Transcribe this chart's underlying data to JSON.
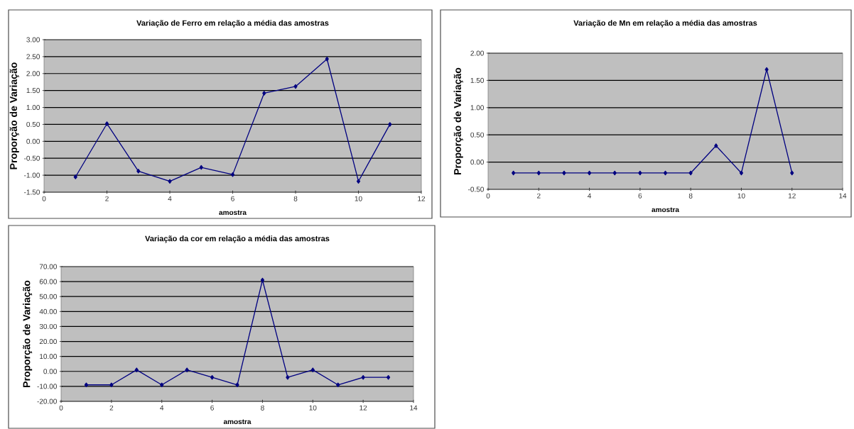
{
  "chart_data": [
    {
      "type": "line",
      "title": "Variação de Ferro em relação a média das amostras",
      "xlabel": "amostra",
      "ylabel": "Proporção de Variação",
      "color": "#000080",
      "marker": "diamond",
      "grid": "y",
      "x": [
        1,
        2,
        3,
        4,
        5,
        6,
        7,
        8,
        9,
        10,
        11
      ],
      "values": [
        -1.05,
        0.52,
        -0.88,
        -1.18,
        -0.77,
        -0.98,
        1.42,
        1.62,
        2.43,
        -1.18,
        0.5
      ],
      "xlim": [
        0,
        12
      ],
      "xticks": [
        0,
        2,
        4,
        6,
        8,
        10,
        12
      ],
      "ylim": [
        -1.5,
        3
      ],
      "yticks": [
        {
          "value": -1.5,
          "label": "-1.50"
        },
        {
          "value": -1,
          "label": "-1.00"
        },
        {
          "value": -0.5,
          "label": "-0.50"
        },
        {
          "value": 0,
          "label": "0.00"
        },
        {
          "value": 0.5,
          "label": "0.50"
        },
        {
          "value": 1,
          "label": "1.00"
        },
        {
          "value": 1.5,
          "label": "1.50"
        },
        {
          "value": 2,
          "label": "2.00"
        },
        {
          "value": 2.5,
          "label": "2.50"
        },
        {
          "value": 3,
          "label": "3.00"
        }
      ]
    },
    {
      "type": "line",
      "title": "Variação de Mn em relação a média das amostras",
      "xlabel": "amostra",
      "ylabel": "Proporção de Variação",
      "color": "#000080",
      "marker": "diamond",
      "grid": "y",
      "x": [
        1,
        2,
        3,
        4,
        5,
        6,
        7,
        8,
        9,
        10,
        11,
        12
      ],
      "values": [
        -0.2,
        -0.2,
        -0.2,
        -0.2,
        -0.2,
        -0.2,
        -0.2,
        -0.2,
        0.3,
        -0.2,
        1.7,
        -0.2
      ],
      "xlim": [
        0,
        14
      ],
      "xticks": [
        0,
        2,
        4,
        6,
        8,
        10,
        12,
        14
      ],
      "ylim": [
        -0.5,
        2
      ],
      "yticks": [
        {
          "value": -0.5,
          "label": "-0.50"
        },
        {
          "value": 0,
          "label": "0.00"
        },
        {
          "value": 0.5,
          "label": "0.50"
        },
        {
          "value": 1,
          "label": "1.00"
        },
        {
          "value": 1.5,
          "label": "1.50"
        },
        {
          "value": 2,
          "label": "2.00"
        }
      ]
    },
    {
      "type": "line",
      "title": "Variação da cor em relação a média das amostras",
      "xlabel": "amostra",
      "ylabel": "Proporção de Variação",
      "color": "#000080",
      "marker": "diamond",
      "grid": "y",
      "x": [
        1,
        2,
        3,
        4,
        5,
        6,
        7,
        8,
        9,
        10,
        11,
        12,
        13
      ],
      "values": [
        -9,
        -9,
        1,
        -9,
        1,
        -4,
        -9,
        61,
        -4,
        1,
        -9,
        -4,
        -4
      ],
      "xlim": [
        0,
        14
      ],
      "xticks": [
        0,
        2,
        4,
        6,
        8,
        10,
        12,
        14
      ],
      "ylim": [
        -20,
        70
      ],
      "yticks": [
        {
          "value": -20,
          "label": "-20.00"
        },
        {
          "value": -10,
          "label": "-10.00"
        },
        {
          "value": 0,
          "label": "0.00"
        },
        {
          "value": 10,
          "label": "10.00"
        },
        {
          "value": 20,
          "label": "20.00"
        },
        {
          "value": 30,
          "label": "30.00"
        },
        {
          "value": 40,
          "label": "40.00"
        },
        {
          "value": 50,
          "label": "50.00"
        },
        {
          "value": 60,
          "label": "60.00"
        },
        {
          "value": 70,
          "label": "70.00"
        }
      ]
    }
  ]
}
